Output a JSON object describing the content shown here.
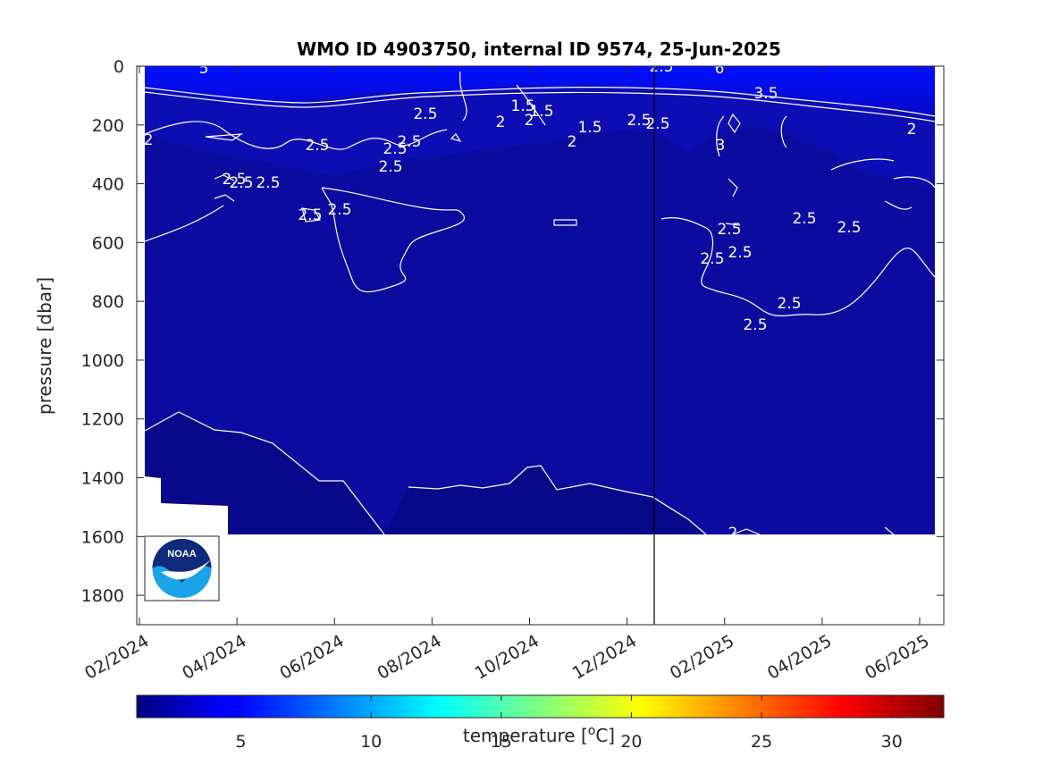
{
  "chart_data": {
    "type": "heatmap",
    "title": "WMO ID 4903750, internal ID 9574, 25-Jun-2025",
    "xlabel": "",
    "ylabel": "pressure [dbar]",
    "y_axis_reversed": true,
    "ylim": [
      0,
      1900
    ],
    "y_ticks": [
      0,
      200,
      400,
      600,
      800,
      1000,
      1200,
      1400,
      1600,
      1800
    ],
    "x_tick_labels": [
      "02/2024",
      "04/2024",
      "06/2024",
      "08/2024",
      "10/2024",
      "12/2024",
      "02/2025",
      "04/2025",
      "06/2025"
    ],
    "colorbar": {
      "label": "temperature [°C]",
      "range": [
        1,
        32
      ],
      "ticks": [
        5,
        10,
        15,
        20,
        25,
        30
      ],
      "colormap": "jet"
    },
    "contour_labels": [
      "5",
      "6",
      "3.5",
      "2.5",
      "2",
      "1.5",
      "3",
      "2.5",
      "2.5",
      "2.5",
      "2.5",
      "2.5",
      "2.5",
      "2.5",
      "2.5",
      "2.5",
      "2.5",
      "2.5",
      "2",
      "2",
      "2",
      "2",
      "1.5",
      "1.5",
      "2.5",
      "2.5",
      "2.5",
      "2.5",
      "2.5",
      "2.5",
      "2.5",
      "2.5",
      "2"
    ],
    "marker_line": {
      "date": "25-Jun-2025",
      "style": "vertical black line"
    },
    "logo": {
      "text": "NOAA"
    },
    "colors": {
      "deep_water": "#0a0a9a",
      "surface_water": "#0000ff",
      "contour": "#ffffff",
      "no_data": "#ffffff"
    }
  }
}
